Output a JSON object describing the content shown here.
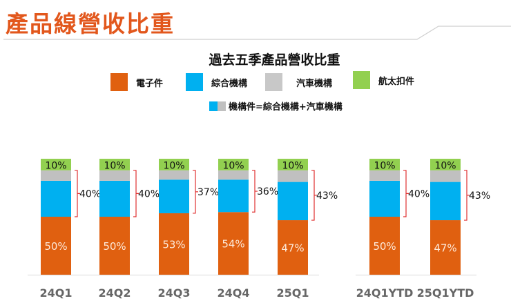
{
  "title": "產品線營收比重",
  "chart_data": {
    "type": "bar",
    "stacked": true,
    "title": "過去五季產品營收比重",
    "legend": [
      {
        "name": "電子件",
        "color": "#e06010"
      },
      {
        "name": "綜合機構",
        "color": "#00b0f0"
      },
      {
        "name": "汽車機構",
        "color": "#c0c0c0"
      },
      {
        "name": "航太扣件",
        "color": "#92d050"
      }
    ],
    "legend_note": "機構件=綜合機構+汽車機構",
    "legend_placement": "top",
    "grid": false,
    "groups": [
      {
        "categories": [
          "24Q1",
          "24Q2",
          "24Q3",
          "24Q4",
          "25Q1"
        ]
      },
      {
        "categories": [
          "24Q1YTD",
          "25Q1YTD"
        ]
      }
    ],
    "categories": [
      "24Q1",
      "24Q2",
      "24Q3",
      "24Q4",
      "25Q1",
      "24Q1YTD",
      "25Q1YTD"
    ],
    "series": [
      {
        "name": "電子件",
        "values": [
          50,
          50,
          53,
          54,
          47,
          50,
          47
        ]
      },
      {
        "name": "綜合機構",
        "values": [
          31,
          31,
          29,
          28,
          33,
          31,
          33
        ],
        "estimated": true
      },
      {
        "name": "汽車機構",
        "values": [
          9,
          9,
          8,
          8,
          10,
          9,
          10
        ],
        "estimated": true
      },
      {
        "name": "航太扣件",
        "values": [
          10,
          10,
          10,
          10,
          10,
          10,
          10
        ]
      }
    ],
    "labels": {
      "electronic": [
        "50%",
        "50%",
        "53%",
        "54%",
        "47%",
        "50%",
        "47%"
      ],
      "machinery": [
        "40%",
        "40%",
        "37%",
        "36%",
        "43%",
        "40%",
        "43%"
      ],
      "aerospace": [
        "10%",
        "10%",
        "10%",
        "10%",
        "10%",
        "10%",
        "10%"
      ]
    },
    "machinery_values": [
      40,
      40,
      37,
      36,
      43,
      40,
      43
    ],
    "ylim": [
      0,
      100
    ]
  }
}
